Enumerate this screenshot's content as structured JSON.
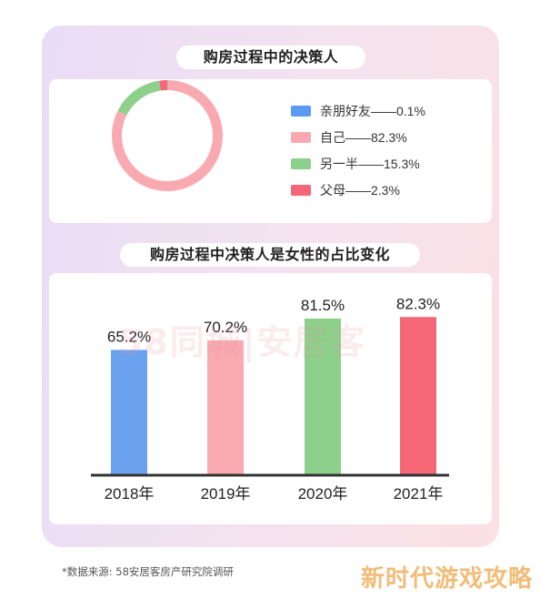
{
  "donut_title": "购房过程中的决策人",
  "bar_title": "购房过程中决策人是女性的占比变化",
  "source_note": "*数据来源: 58安居客房产研究院调研",
  "watermark": "58同城|安居客",
  "corner_text": "新时代游戏攻略",
  "chart_data": [
    {
      "type": "pie",
      "title": "购房过程中的决策人",
      "legend_position": "right",
      "slices": [
        {
          "label": "亲朋好友——0.1%",
          "name": "亲朋好友",
          "value": 0.1,
          "color": "#5b9af1"
        },
        {
          "label": "自己——82.3%",
          "name": "自己",
          "value": 82.3,
          "color": "#f9aab0"
        },
        {
          "label": "另一半——15.3%",
          "name": "另一半",
          "value": 15.3,
          "color": "#8dd08c"
        },
        {
          "label": "父母——2.3%",
          "name": "父母",
          "value": 2.3,
          "color": "#f56677"
        }
      ]
    },
    {
      "type": "bar",
      "title": "购房过程中决策人是女性的占比变化",
      "categories": [
        "2018年",
        "2019年",
        "2020年",
        "2021年"
      ],
      "values": [
        65.2,
        70.2,
        81.5,
        82.3
      ],
      "value_labels": [
        "65.2%",
        "70.2%",
        "81.5%",
        "82.3%"
      ],
      "colors": [
        "#6ba2f0",
        "#f9aab0",
        "#8dd08c",
        "#f56677"
      ],
      "ylim": [
        0,
        90
      ],
      "grid": false
    }
  ]
}
